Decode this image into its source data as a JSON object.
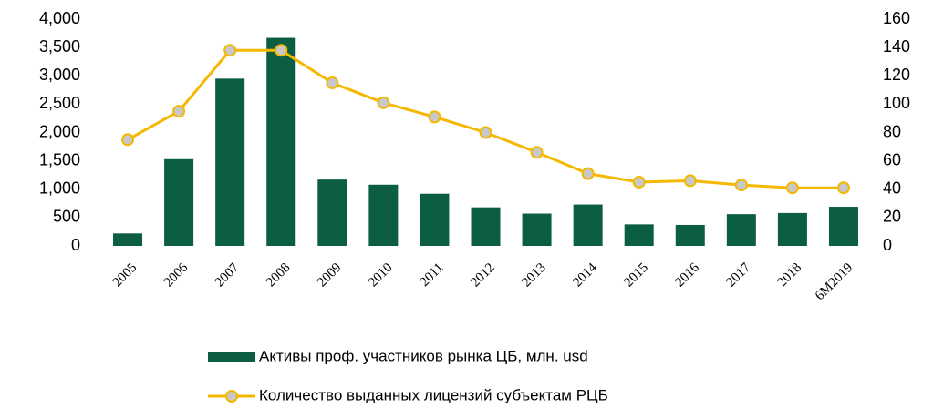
{
  "chart_data": {
    "type": "bar-line",
    "categories": [
      "2005",
      "2006",
      "2007",
      "2008",
      "2009",
      "2010",
      "2011",
      "2012",
      "2013",
      "2014",
      "2015",
      "2016",
      "2017",
      "2018",
      "6M2019"
    ],
    "series": [
      {
        "name": "Активы проф. участников рынка ЦБ, млн. usd",
        "type": "bar",
        "color": "#0b5e43",
        "axis": "y",
        "values": [
          220,
          1530,
          2950,
          3670,
          1170,
          1080,
          920,
          680,
          570,
          730,
          380,
          370,
          560,
          580,
          690
        ]
      },
      {
        "name": "Количество выданных лицензий субъектам РЦБ",
        "type": "line",
        "color": "#f5b800",
        "marker_color": "#c8c8c8",
        "axis": "y2",
        "values": [
          75,
          95,
          138,
          138,
          115,
          101,
          91,
          80,
          66,
          51,
          45,
          46,
          43,
          41,
          41
        ]
      }
    ],
    "ylim": [
      0,
      4000
    ],
    "yticks": [
      0,
      500,
      {
        "value": 1000,
        "label": "1,000"
      },
      {
        "value": 1500,
        "label": "1,500"
      },
      {
        "value": 2000,
        "label": "2,000"
      },
      {
        "value": 2500,
        "label": "2,500"
      },
      {
        "value": 3000,
        "label": "3,000"
      },
      {
        "value": 3500,
        "label": "3,500"
      },
      {
        "value": 4000,
        "label": "4,000"
      }
    ],
    "y2lim": [
      0,
      160
    ],
    "y2ticks": [
      0,
      20,
      40,
      60,
      80,
      100,
      120,
      140,
      160
    ],
    "grid": false,
    "legend": "bottom"
  }
}
